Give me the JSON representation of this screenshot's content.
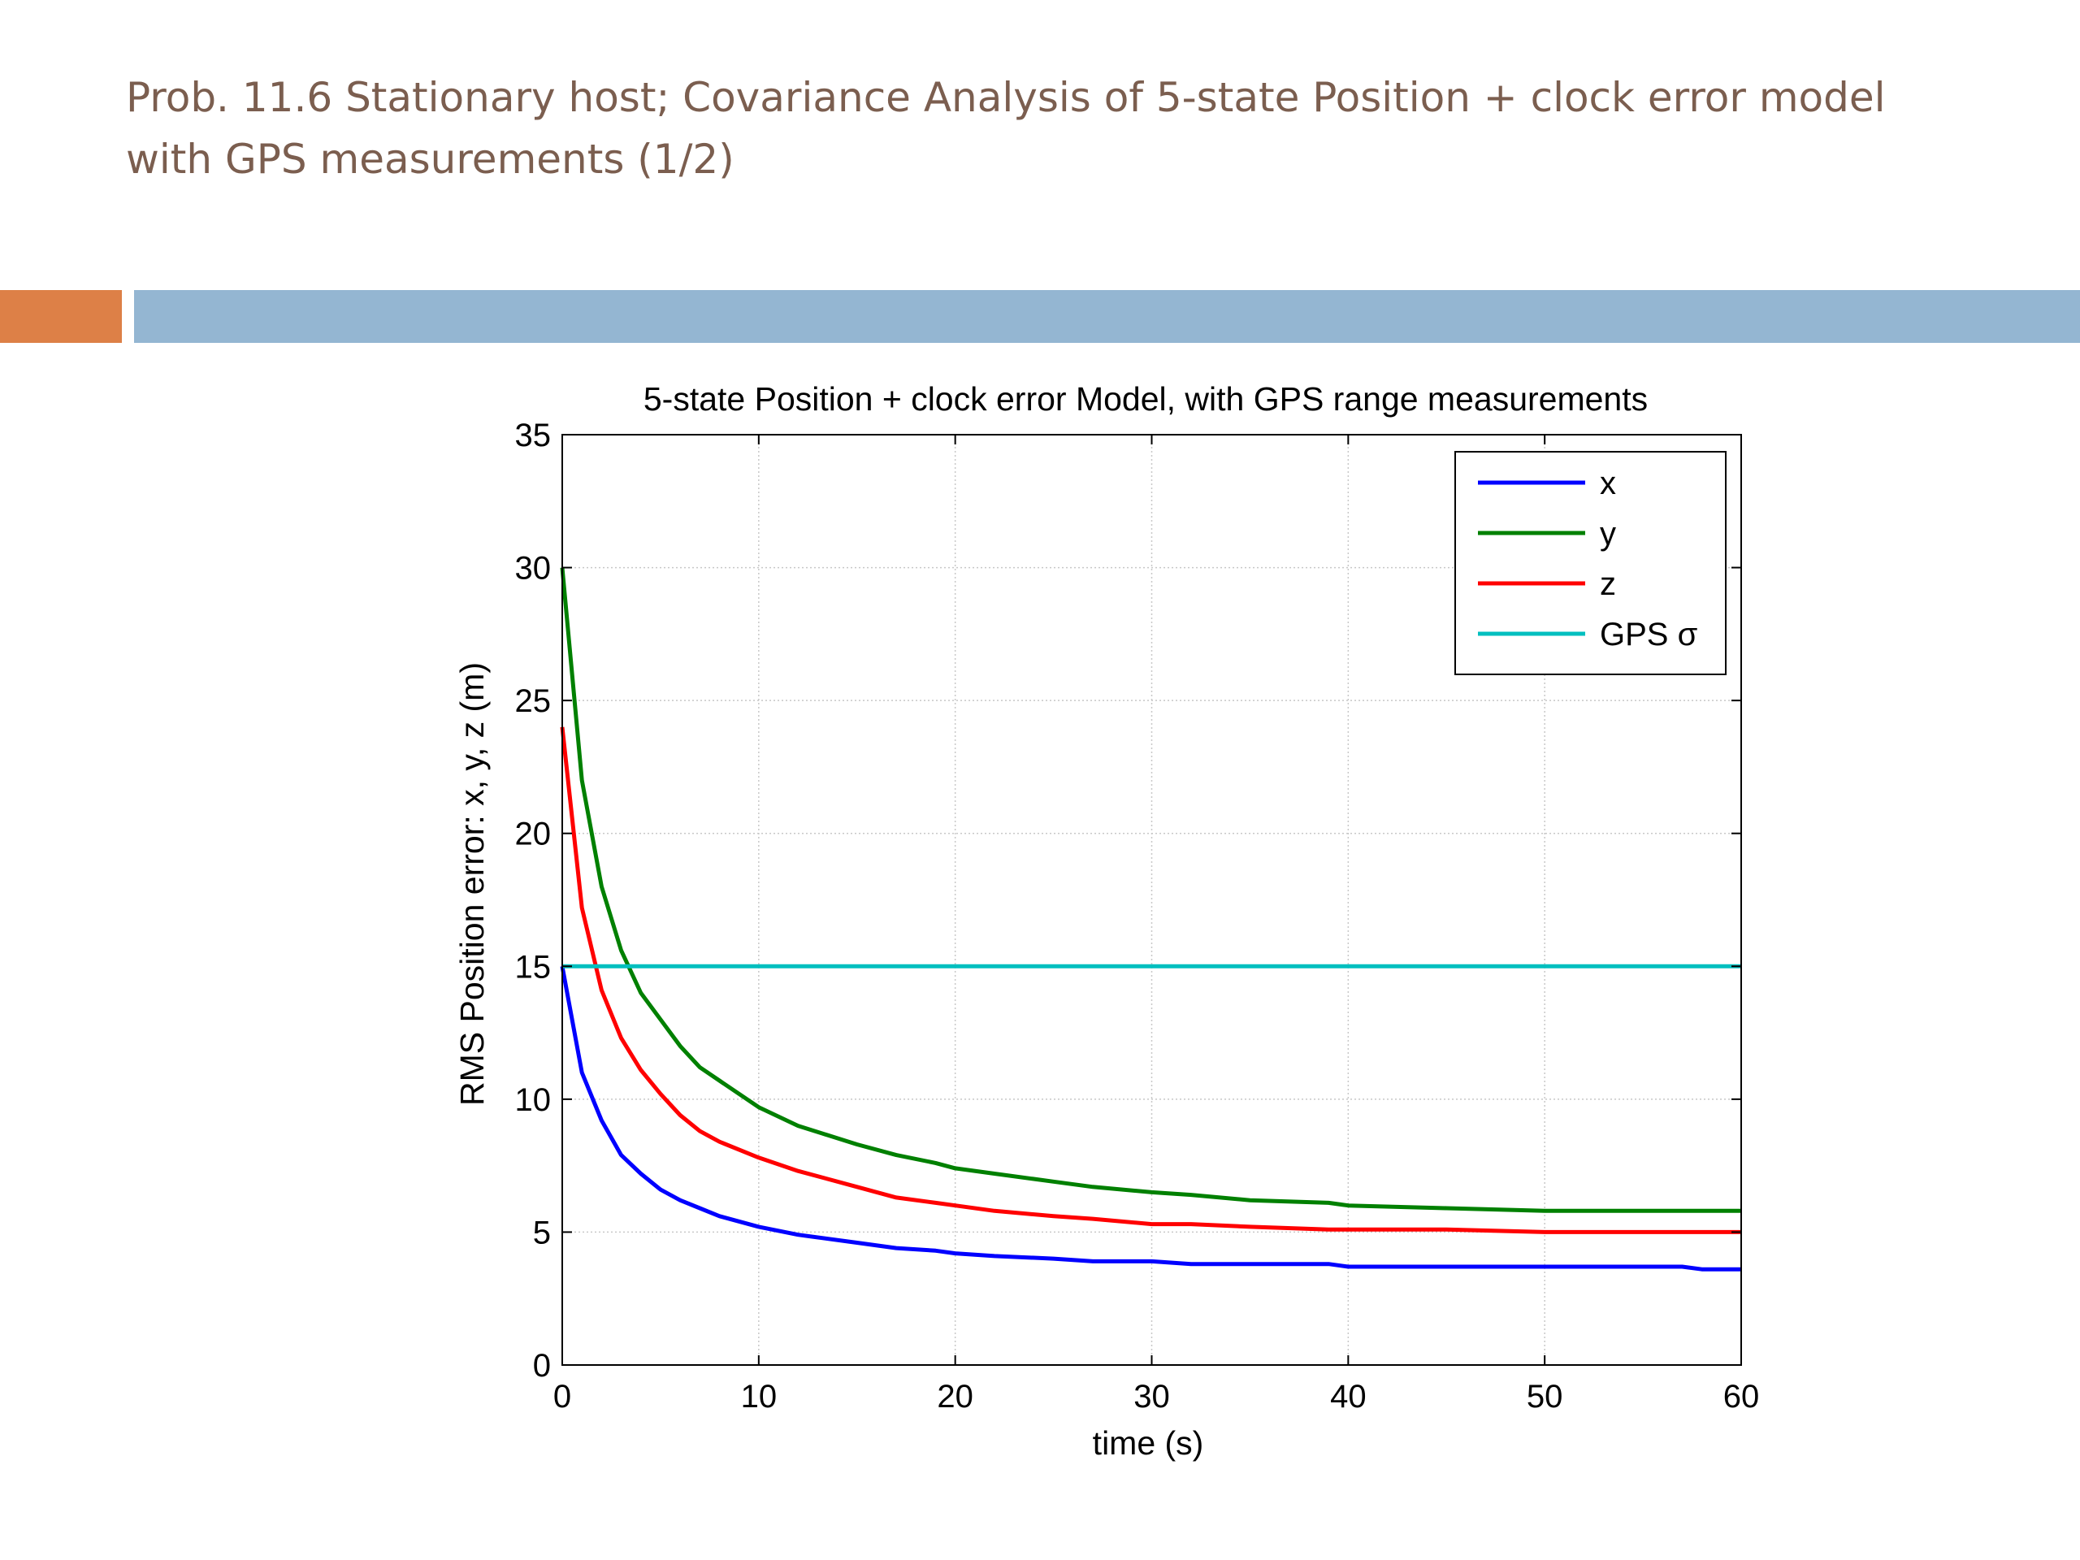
{
  "slide": {
    "title_line1": "Prob. 11.6 Stationary host; Covariance Analysis of 5-state Position + clock error model",
    "title_line2": "with GPS measurements (1/2)"
  },
  "colors": {
    "title_text": "#7b5e4f",
    "accent_bar": "#dd8047",
    "main_bar": "#94b6d2"
  },
  "chart_data": {
    "type": "line",
    "title": "5-state Position + clock error Model, with GPS range measurements",
    "xlabel": "time (s)",
    "ylabel": "RMS Position error: x, y, z (m)",
    "xlim": [
      0,
      60
    ],
    "ylim": [
      0,
      35
    ],
    "xticks": [
      0,
      10,
      20,
      30,
      40,
      50,
      60
    ],
    "yticks": [
      0,
      5,
      10,
      15,
      20,
      25,
      30,
      35
    ],
    "grid": true,
    "legend_position": "top-right",
    "series": [
      {
        "name": "x",
        "color": "#0000ff",
        "x": [
          0,
          1,
          2,
          3,
          4,
          5,
          6,
          7,
          8,
          10,
          12,
          15,
          17,
          19,
          20,
          22,
          25,
          27,
          30,
          32,
          35,
          39,
          40,
          45,
          50,
          55,
          57,
          58,
          60
        ],
        "y": [
          15,
          11,
          9.2,
          7.9,
          7.2,
          6.6,
          6.2,
          5.9,
          5.6,
          5.2,
          4.9,
          4.6,
          4.4,
          4.3,
          4.2,
          4.1,
          4.0,
          3.9,
          3.9,
          3.8,
          3.8,
          3.8,
          3.7,
          3.7,
          3.7,
          3.7,
          3.7,
          3.6,
          3.6
        ]
      },
      {
        "name": "y",
        "color": "#008000",
        "x": [
          0,
          1,
          2,
          3,
          4,
          5,
          6,
          7,
          8,
          10,
          12,
          15,
          17,
          19,
          20,
          22,
          25,
          27,
          30,
          32,
          35,
          39,
          40,
          45,
          50,
          55,
          60
        ],
        "y": [
          30,
          22,
          18,
          15.6,
          14,
          13,
          12,
          11.2,
          10.7,
          9.7,
          9.0,
          8.3,
          7.9,
          7.6,
          7.4,
          7.2,
          6.9,
          6.7,
          6.5,
          6.4,
          6.2,
          6.1,
          6.0,
          5.9,
          5.8,
          5.8,
          5.8
        ]
      },
      {
        "name": "z",
        "color": "#ff0000",
        "x": [
          0,
          1,
          2,
          3,
          4,
          5,
          6,
          7,
          8,
          10,
          12,
          15,
          17,
          19,
          20,
          22,
          25,
          27,
          30,
          32,
          35,
          39,
          40,
          45,
          50,
          55,
          60
        ],
        "y": [
          24,
          17.2,
          14.1,
          12.3,
          11.1,
          10.2,
          9.4,
          8.8,
          8.4,
          7.8,
          7.3,
          6.7,
          6.3,
          6.1,
          6.0,
          5.8,
          5.6,
          5.5,
          5.3,
          5.3,
          5.2,
          5.1,
          5.1,
          5.1,
          5.0,
          5.0,
          5.0
        ]
      },
      {
        "name": "GPS σ",
        "color": "#00bfbf",
        "x": [
          0,
          60
        ],
        "y": [
          15,
          15
        ]
      }
    ]
  }
}
